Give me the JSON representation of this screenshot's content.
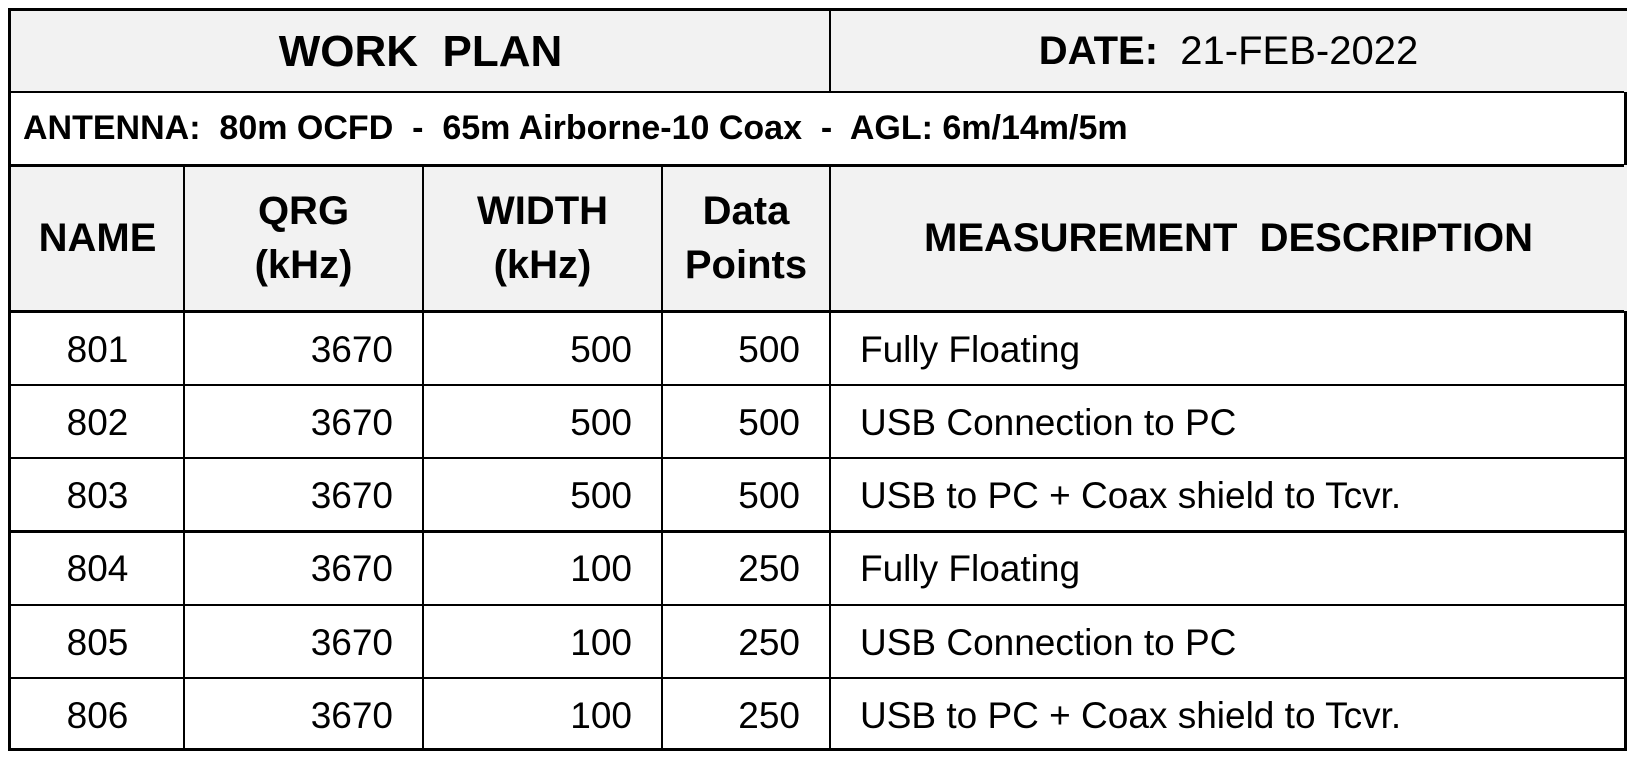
{
  "title": "WORK  PLAN",
  "date_label": "DATE:",
  "date_value": "21-FEB-2022",
  "antenna": "ANTENNA:  80m OCFD  -  65m Airborne-10 Coax  -  AGL: 6m/14m/5m",
  "columns": [
    {
      "line1": "NAME",
      "line2": ""
    },
    {
      "line1": "QRG",
      "line2": "(kHz)"
    },
    {
      "line1": "WIDTH",
      "line2": "(kHz)"
    },
    {
      "line1": "Data",
      "line2": "Points"
    },
    {
      "line1": "MEASUREMENT  DESCRIPTION",
      "line2": ""
    }
  ],
  "rows": [
    {
      "name": "801",
      "qrg": "3670",
      "width": "500",
      "points": "500",
      "desc": "Fully Floating"
    },
    {
      "name": "802",
      "qrg": "3670",
      "width": "500",
      "points": "500",
      "desc": "USB Connection to PC"
    },
    {
      "name": "803",
      "qrg": "3670",
      "width": "500",
      "points": "500",
      "desc": "USB to PC + Coax shield to Tcvr."
    },
    {
      "name": "804",
      "qrg": "3670",
      "width": "100",
      "points": "250",
      "desc": "Fully Floating"
    },
    {
      "name": "805",
      "qrg": "3670",
      "width": "100",
      "points": "250",
      "desc": "USB Connection to PC"
    },
    {
      "name": "806",
      "qrg": "3670",
      "width": "100",
      "points": "250",
      "desc": "USB to PC + Coax shield to Tcvr."
    }
  ],
  "colors": {
    "header_bg": "#f2f2f2",
    "border": "#000000"
  }
}
